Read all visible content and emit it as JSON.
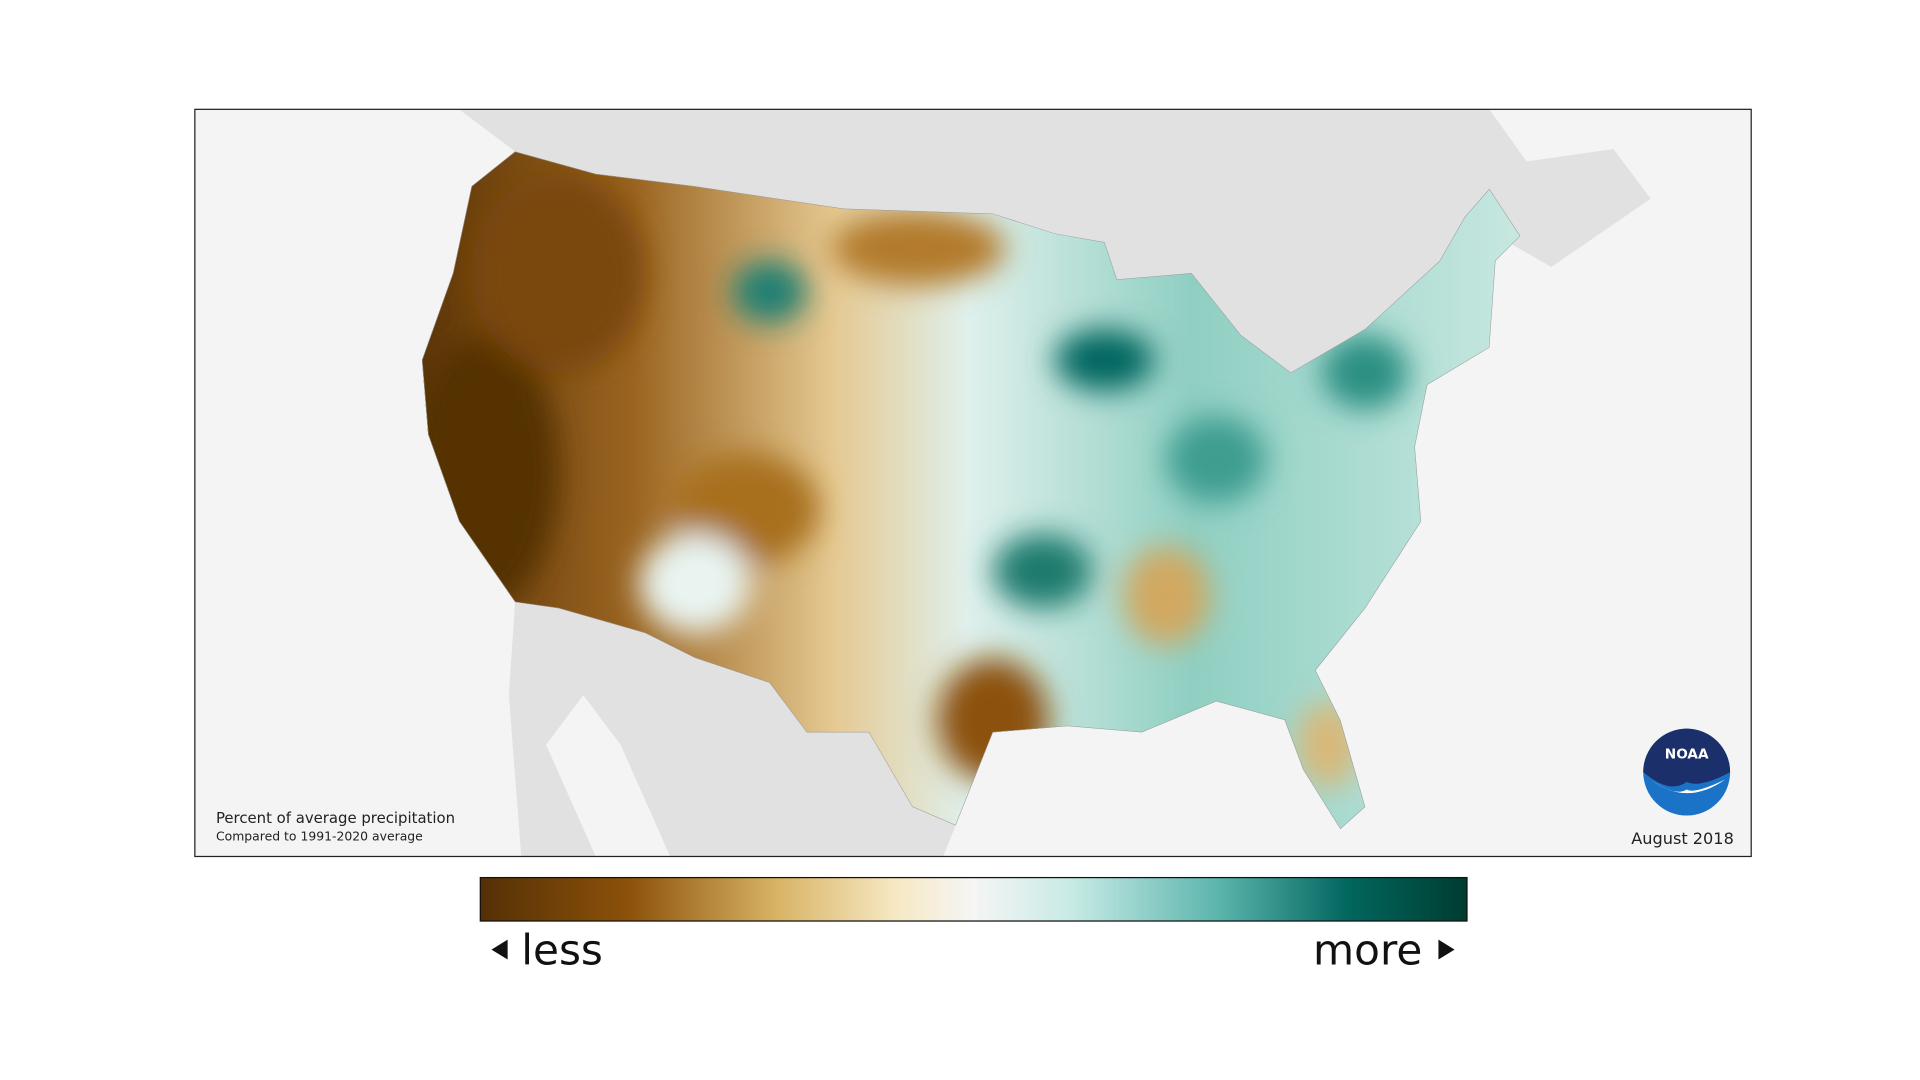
{
  "map": {
    "caption_title": "Percent of average precipitation",
    "caption_subtitle": "Compared to 1991-2020 average",
    "date": "August 2018",
    "logo": "NOAA"
  },
  "legend": {
    "low_label": "less",
    "high_label": "more"
  }
}
